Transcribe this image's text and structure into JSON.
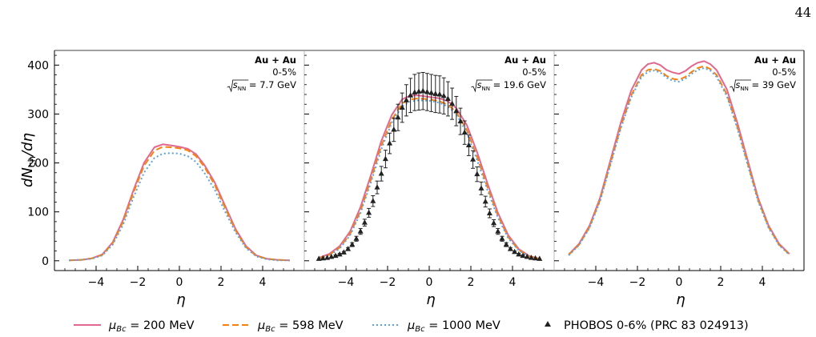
{
  "page_number": "44",
  "ylabel": "dN",
  "ylabel_sub": "ch",
  "ylabel_tail": "/dη",
  "xlabel": "η",
  "legend": [
    {
      "key": "mu200",
      "pre": "μ",
      "sub": "Bc",
      "post": " = 200 MeV",
      "color": "#e3688f",
      "dash": "solid"
    },
    {
      "key": "mu598",
      "pre": "μ",
      "sub": "Bc",
      "post": " = 598 MeV",
      "color": "#f5820f",
      "dash": "dashed"
    },
    {
      "key": "mu1000",
      "pre": "μ",
      "sub": "Bc",
      "post": " = 1000 MeV",
      "color": "#5ba3db",
      "dash": "dotted"
    },
    {
      "key": "phobos",
      "pre": "",
      "sub": "",
      "post": "PHOBOS 0-6% (PRC 83 024913)",
      "color": "#222222",
      "dash": "marker"
    }
  ],
  "chart_data": [
    {
      "type": "line",
      "system": "Au + Au",
      "centrality": "0-5%",
      "energy_label": "= 7.7 GeV",
      "sqrt_label": "s",
      "sqrt_sub": "NN",
      "xlim": [
        -6,
        6
      ],
      "ylim": [
        -20,
        430
      ],
      "xticks": [
        -4,
        -2,
        0,
        2,
        4
      ],
      "yticks": [
        0,
        100,
        200,
        300,
        400
      ],
      "x": [
        -5.3,
        -4.7,
        -4.2,
        -3.7,
        -3.2,
        -2.7,
        -2.2,
        -1.7,
        -1.2,
        -0.8,
        -0.4,
        0.0,
        0.4,
        0.8,
        1.2,
        1.7,
        2.2,
        2.7,
        3.2,
        3.7,
        4.2,
        4.7,
        5.3
      ],
      "series": [
        {
          "name": "μ_Bc = 200 MeV",
          "values": [
            1,
            2,
            5,
            13,
            38,
            84,
            145,
            200,
            232,
            238,
            236,
            233,
            229,
            218,
            196,
            160,
            112,
            65,
            30,
            11,
            4,
            2,
            1
          ]
        },
        {
          "name": "μ_Bc = 598 MeV",
          "values": [
            1,
            2,
            5,
            12,
            36,
            80,
            140,
            194,
            225,
            233,
            232,
            230,
            226,
            214,
            192,
            155,
            108,
            62,
            28,
            10,
            4,
            2,
            1
          ]
        },
        {
          "name": "μ_Bc = 1000 MeV",
          "values": [
            1,
            2,
            4,
            11,
            33,
            74,
            130,
            180,
            210,
            219,
            220,
            219,
            214,
            202,
            180,
            145,
            100,
            58,
            26,
            9,
            3,
            1,
            1
          ]
        }
      ]
    },
    {
      "type": "line",
      "system": "Au + Au",
      "centrality": "0-5%",
      "energy_label": "= 19.6 GeV",
      "sqrt_label": "s",
      "sqrt_sub": "NN",
      "xlim": [
        -6,
        6
      ],
      "ylim": [
        -20,
        430
      ],
      "xticks": [
        -4,
        -2,
        0,
        2,
        4
      ],
      "yticks": [
        0,
        100,
        200,
        300,
        400
      ],
      "x": [
        -5.3,
        -4.8,
        -4.3,
        -3.8,
        -3.3,
        -2.8,
        -2.3,
        -1.8,
        -1.3,
        -0.9,
        -0.5,
        0.0,
        0.5,
        0.9,
        1.3,
        1.8,
        2.3,
        2.8,
        3.3,
        3.8,
        4.3,
        4.8,
        5.3
      ],
      "series": [
        {
          "name": "μ_Bc = 200 MeV",
          "values": [
            6,
            14,
            30,
            60,
            110,
            175,
            245,
            298,
            330,
            338,
            338,
            335,
            332,
            326,
            312,
            278,
            222,
            158,
            98,
            52,
            24,
            10,
            4
          ]
        },
        {
          "name": "μ_Bc = 598 MeV",
          "values": [
            5,
            12,
            27,
            55,
            102,
            166,
            235,
            288,
            322,
            330,
            332,
            330,
            326,
            319,
            304,
            268,
            212,
            150,
            92,
            48,
            22,
            9,
            4
          ]
        },
        {
          "name": "μ_Bc = 1000 MeV",
          "values": [
            5,
            11,
            25,
            52,
            98,
            160,
            228,
            282,
            316,
            326,
            328,
            327,
            323,
            315,
            300,
            262,
            206,
            144,
            88,
            46,
            21,
            8,
            3
          ]
        }
      ],
      "points": {
        "name": "PHOBOS 0-6% (PRC 83 024913)",
        "x": [
          -5.3,
          -5.1,
          -4.9,
          -4.7,
          -4.5,
          -4.3,
          -4.1,
          -3.9,
          -3.7,
          -3.5,
          -3.3,
          -3.1,
          -2.9,
          -2.7,
          -2.5,
          -2.3,
          -2.1,
          -1.9,
          -1.7,
          -1.5,
          -1.3,
          -1.1,
          -0.9,
          -0.7,
          -0.5,
          -0.3,
          -0.1,
          0.1,
          0.3,
          0.5,
          0.7,
          0.9,
          1.1,
          1.3,
          1.5,
          1.7,
          1.9,
          2.1,
          2.3,
          2.5,
          2.7,
          2.9,
          3.1,
          3.3,
          3.5,
          3.7,
          3.9,
          4.1,
          4.3,
          4.5,
          4.7,
          4.9,
          5.1,
          5.3
        ],
        "y": [
          4,
          5,
          6,
          8,
          10,
          13,
          17,
          24,
          33,
          45,
          60,
          78,
          98,
          122,
          150,
          178,
          208,
          240,
          268,
          293,
          313,
          328,
          338,
          344,
          346,
          347,
          345,
          343,
          341,
          340,
          337,
          331,
          321,
          306,
          285,
          262,
          236,
          207,
          177,
          148,
          121,
          97,
          77,
          60,
          45,
          33,
          24,
          18,
          13,
          10,
          8,
          6,
          5,
          4
        ],
        "err": [
          1,
          1,
          1,
          1,
          2,
          2,
          2,
          3,
          4,
          5,
          6,
          7,
          9,
          11,
          13,
          15,
          18,
          21,
          24,
          27,
          30,
          32,
          35,
          37,
          38,
          38,
          38,
          38,
          38,
          38,
          37,
          35,
          32,
          30,
          27,
          24,
          21,
          18,
          15,
          13,
          11,
          9,
          7,
          6,
          5,
          4,
          3,
          2,
          2,
          2,
          1,
          1,
          1,
          1
        ]
      }
    },
    {
      "type": "line",
      "system": "Au + Au",
      "centrality": "0-5%",
      "energy_label": "= 39 GeV",
      "sqrt_label": "s",
      "sqrt_sub": "NN",
      "xlim": [
        -6,
        6
      ],
      "ylim": [
        -20,
        430
      ],
      "xticks": [
        -4,
        -2,
        0,
        2,
        4
      ],
      "yticks": [
        0,
        100,
        200,
        300,
        400
      ],
      "x": [
        -5.3,
        -4.8,
        -4.3,
        -3.8,
        -3.3,
        -2.8,
        -2.3,
        -1.8,
        -1.5,
        -1.2,
        -0.9,
        -0.6,
        -0.3,
        0.0,
        0.3,
        0.6,
        0.9,
        1.2,
        1.5,
        1.8,
        2.3,
        2.8,
        3.3,
        3.8,
        4.3,
        4.8,
        5.3
      ],
      "series": [
        {
          "name": "μ_Bc = 200 MeV",
          "values": [
            13,
            35,
            72,
            128,
            205,
            282,
            348,
            390,
            402,
            405,
            400,
            390,
            385,
            382,
            388,
            398,
            405,
            408,
            402,
            390,
            350,
            282,
            205,
            128,
            72,
            35,
            14
          ]
        },
        {
          "name": "μ_Bc = 598 MeV",
          "values": [
            12,
            33,
            69,
            124,
            199,
            274,
            338,
            380,
            390,
            392,
            388,
            378,
            372,
            370,
            376,
            386,
            394,
            398,
            392,
            380,
            340,
            274,
            199,
            124,
            69,
            33,
            13
          ]
        },
        {
          "name": "μ_Bc = 1000 MeV",
          "values": [
            11,
            32,
            67,
            121,
            195,
            270,
            334,
            376,
            386,
            389,
            385,
            374,
            368,
            366,
            372,
            382,
            390,
            394,
            389,
            376,
            336,
            270,
            195,
            121,
            67,
            32,
            12
          ]
        }
      ]
    }
  ]
}
